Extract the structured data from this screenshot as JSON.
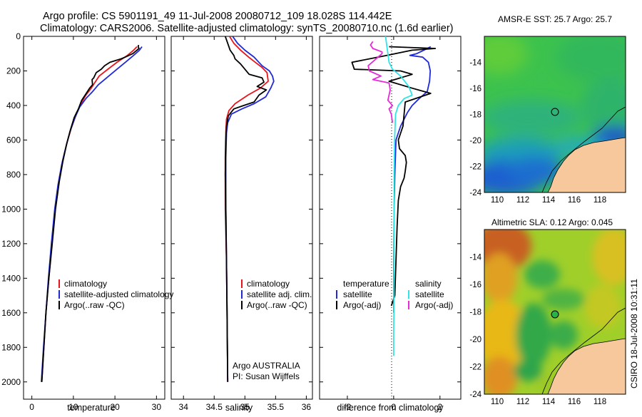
{
  "title": {
    "line1": "Argo profile: CS 5901191_49 11-Jul-2008 20080712_109 18.028S 114.442E",
    "line2": "Climatology: CARS2006. Satellite-adjusted climatology: synTS_20080710.nc (1.6d earlier)"
  },
  "credit": "CSIRO 18-Jul-2008 10:31:11",
  "chart_data": [
    {
      "id": "temperature",
      "type": "line",
      "xlabel": "temperature",
      "ylabel": "",
      "xlim": [
        -2,
        32
      ],
      "ylim": [
        0,
        2100
      ],
      "y_reversed": true,
      "xticks": [
        0,
        10,
        20,
        30
      ],
      "yticks": [
        0,
        200,
        400,
        600,
        800,
        1000,
        1200,
        1400,
        1600,
        1800,
        2000
      ],
      "legend": [
        "climatology",
        "satellite-adjusted climatology",
        "Argo(..raw -QC)"
      ],
      "series": [
        {
          "name": "climatology",
          "color": "#e8141b",
          "points": [
            [
              25.3,
              60
            ],
            [
              24.5,
              80
            ],
            [
              23,
              110
            ],
            [
              20.5,
              150
            ],
            [
              18.3,
              190
            ],
            [
              16.2,
              230
            ],
            [
              15.1,
              270
            ],
            [
              14.3,
              300
            ],
            [
              13,
              340
            ],
            [
              11.8,
              390
            ],
            [
              10.7,
              450
            ],
            [
              9.5,
              530
            ],
            [
              8.4,
              620
            ],
            [
              7.4,
              720
            ],
            [
              6.5,
              840
            ],
            [
              5.6,
              1000
            ],
            [
              4.8,
              1200
            ],
            [
              4.1,
              1400
            ],
            [
              3.4,
              1600
            ],
            [
              2.9,
              1800
            ],
            [
              2.4,
              2000
            ]
          ]
        },
        {
          "name": "satellite-adjusted climatology",
          "color": "#1f2ad6",
          "points": [
            [
              26.5,
              60
            ],
            [
              25.9,
              80
            ],
            [
              24.5,
              110
            ],
            [
              22.5,
              150
            ],
            [
              20.5,
              190
            ],
            [
              18,
              240
            ],
            [
              16,
              280
            ],
            [
              14.6,
              320
            ],
            [
              13,
              360
            ],
            [
              11.5,
              410
            ],
            [
              10.4,
              470
            ],
            [
              9.2,
              550
            ],
            [
              8.2,
              640
            ],
            [
              7.2,
              740
            ],
            [
              6.3,
              860
            ],
            [
              5.5,
              1000
            ],
            [
              4.7,
              1200
            ],
            [
              4,
              1400
            ],
            [
              3.4,
              1600
            ],
            [
              2.8,
              1800
            ],
            [
              2.3,
              2000
            ]
          ]
        },
        {
          "name": "Argo(..raw -QC)",
          "color": "#000000",
          "points": [
            [
              25.7,
              50
            ],
            [
              25.6,
              60
            ],
            [
              25.8,
              70
            ],
            [
              25.3,
              80
            ],
            [
              24.3,
              100
            ],
            [
              22.5,
              120
            ],
            [
              21.5,
              130
            ],
            [
              18.8,
              150
            ],
            [
              17.5,
              170
            ],
            [
              16.7,
              190
            ],
            [
              15.5,
              210
            ],
            [
              14.9,
              240
            ],
            [
              14.5,
              250
            ],
            [
              14.6,
              280
            ],
            [
              13.9,
              300
            ],
            [
              13.1,
              330
            ],
            [
              12,
              370
            ],
            [
              11.2,
              420
            ],
            [
              10.2,
              470
            ],
            [
              9.3,
              540
            ],
            [
              8.4,
              620
            ],
            [
              7.5,
              720
            ],
            [
              6.6,
              840
            ],
            [
              5.7,
              1000
            ],
            [
              4.9,
              1200
            ],
            [
              4.1,
              1400
            ],
            [
              3.4,
              1600
            ],
            [
              2.9,
              1800
            ],
            [
              2.4,
              2000
            ]
          ]
        }
      ]
    },
    {
      "id": "salinity",
      "type": "line",
      "xlabel": "salinity",
      "ylabel": "",
      "xlim": [
        33.8,
        36.1
      ],
      "ylim": [
        0,
        2100
      ],
      "y_reversed": true,
      "xticks": [
        34,
        34.5,
        35,
        35.5,
        36
      ],
      "legend": [
        "climatology",
        "satellite adj. clim.",
        "Argo(..raw -QC)"
      ],
      "annotation": [
        "Argo AUSTRALIA",
        "PI: Susan Wijffels"
      ],
      "series": [
        {
          "name": "climatology",
          "color": "#e8141b",
          "points": [
            [
              34.75,
              0
            ],
            [
              34.82,
              40
            ],
            [
              34.93,
              80
            ],
            [
              35.06,
              120
            ],
            [
              35.17,
              150
            ],
            [
              35.28,
              180
            ],
            [
              35.36,
              210
            ],
            [
              35.38,
              260
            ],
            [
              35.25,
              300
            ],
            [
              35.05,
              340
            ],
            [
              34.84,
              390
            ],
            [
              34.74,
              430
            ],
            [
              34.7,
              480
            ],
            [
              34.69,
              550
            ],
            [
              34.68,
              700
            ],
            [
              34.68,
              1000
            ],
            [
              34.7,
              1300
            ],
            [
              34.71,
              1600
            ],
            [
              34.72,
              2000
            ]
          ]
        },
        {
          "name": "satellite-adjusted climatology",
          "color": "#1f2ad6",
          "points": [
            [
              34.8,
              0
            ],
            [
              34.88,
              40
            ],
            [
              35.0,
              80
            ],
            [
              35.15,
              120
            ],
            [
              35.28,
              170
            ],
            [
              35.4,
              200
            ],
            [
              35.45,
              230
            ],
            [
              35.47,
              260
            ],
            [
              35.42,
              300
            ],
            [
              35.34,
              350
            ],
            [
              35.15,
              390
            ],
            [
              34.95,
              420
            ],
            [
              34.78,
              450
            ],
            [
              34.72,
              500
            ],
            [
              34.7,
              560
            ],
            [
              34.69,
              700
            ],
            [
              34.69,
              1000
            ],
            [
              34.7,
              1300
            ],
            [
              34.71,
              1600
            ],
            [
              34.72,
              2000
            ]
          ]
        },
        {
          "name": "Argo(..raw -QC)",
          "color": "#000000",
          "points": [
            [
              34.68,
              0
            ],
            [
              34.72,
              40
            ],
            [
              34.76,
              80
            ],
            [
              34.82,
              110
            ],
            [
              34.84,
              130
            ],
            [
              34.93,
              160
            ],
            [
              35.0,
              190
            ],
            [
              35.07,
              220
            ],
            [
              35.28,
              240
            ],
            [
              35.31,
              265
            ],
            [
              35.2,
              290
            ],
            [
              35.35,
              310
            ],
            [
              35.23,
              340
            ],
            [
              35.15,
              380
            ],
            [
              34.98,
              400
            ],
            [
              34.82,
              420
            ],
            [
              34.73,
              460
            ],
            [
              34.7,
              520
            ],
            [
              34.69,
              600
            ],
            [
              34.68,
              800
            ],
            [
              34.69,
              1000
            ],
            [
              34.7,
              1300
            ],
            [
              34.71,
              1600
            ],
            [
              34.72,
              2000
            ]
          ]
        }
      ]
    },
    {
      "id": "difference",
      "type": "line",
      "xlabel": "difference from climatology",
      "ylabel": "",
      "xlim": [
        -3.2,
        2.9
      ],
      "ylim": [
        0,
        2100
      ],
      "y_reversed": true,
      "xticks": [
        -2,
        0,
        2
      ],
      "legend": [
        "temperature",
        "satellite",
        "Argo(-adj)",
        "salinity",
        "satellite",
        "Argo(-adj)"
      ],
      "series": [
        {
          "name": "temperature satellite",
          "color": "#1f2ad6",
          "points": [
            [
              1.6,
              60
            ],
            [
              1.3,
              80
            ],
            [
              1.0,
              100
            ],
            [
              0.7,
              110
            ],
            [
              1.25,
              120
            ],
            [
              1.5,
              150
            ],
            [
              1.58,
              200
            ],
            [
              1.55,
              260
            ],
            [
              1.45,
              320
            ],
            [
              1.1,
              360
            ],
            [
              0.8,
              400
            ],
            [
              0.6,
              440
            ],
            [
              0.3,
              520
            ],
            [
              0.1,
              600
            ],
            [
              0.05,
              800
            ],
            [
              0.02,
              1000
            ],
            [
              0,
              1300
            ],
            [
              0,
              1600
            ]
          ]
        },
        {
          "name": "temperature Argo(-adj)",
          "color": "#000000",
          "points": [
            [
              -0.2,
              60
            ],
            [
              1.8,
              70
            ],
            [
              0.8,
              80
            ],
            [
              -0.3,
              110
            ],
            [
              -1.8,
              150
            ],
            [
              -1.7,
              190
            ],
            [
              0.3,
              200
            ],
            [
              0.8,
              220
            ],
            [
              -0.2,
              260
            ],
            [
              0.8,
              300
            ],
            [
              1.6,
              330
            ],
            [
              0.5,
              380
            ],
            [
              0.45,
              450
            ],
            [
              0.4,
              520
            ],
            [
              0.2,
              600
            ],
            [
              0.25,
              650
            ],
            [
              0.5,
              690
            ],
            [
              0.55,
              730
            ],
            [
              0.5,
              780
            ],
            [
              0.45,
              820
            ],
            [
              0.3,
              870
            ],
            [
              0.2,
              950
            ],
            [
              0.15,
              1100
            ],
            [
              0.1,
              1300
            ],
            [
              0.05,
              1500
            ],
            [
              -0.1,
              1560
            ]
          ]
        },
        {
          "name": "salinity satellite",
          "color": "#2ee6e6",
          "points": [
            [
              -0.35,
              0
            ],
            [
              -0.3,
              50
            ],
            [
              -0.25,
              100
            ],
            [
              -0.2,
              150
            ],
            [
              -0.05,
              190
            ],
            [
              0.3,
              230
            ],
            [
              0.65,
              290
            ],
            [
              0.8,
              340
            ],
            [
              0.45,
              360
            ],
            [
              0.2,
              400
            ],
            [
              0.08,
              450
            ],
            [
              0.04,
              600
            ],
            [
              0.02,
              800
            ],
            [
              0.02,
              1000
            ],
            [
              0.01,
              1300
            ],
            [
              0.01,
              1600
            ],
            [
              0,
              1700
            ],
            [
              0,
              1850
            ]
          ]
        },
        {
          "name": "salinity Argo(-adj)",
          "color": "#e52ad6",
          "points": [
            [
              -0.9,
              30
            ],
            [
              -1.0,
              50
            ],
            [
              -0.9,
              70
            ],
            [
              -0.5,
              90
            ],
            [
              -0.5,
              100
            ],
            [
              -1.1,
              170
            ],
            [
              -1.05,
              200
            ],
            [
              -0.55,
              230
            ],
            [
              -0.9,
              250
            ],
            [
              -0.2,
              270
            ],
            [
              -0.15,
              310
            ],
            [
              -0.25,
              370
            ],
            [
              -0.05,
              400
            ],
            [
              -0.2,
              420
            ],
            [
              -0.1,
              450
            ],
            [
              -0.05,
              500
            ]
          ]
        }
      ]
    },
    {
      "id": "sst-map",
      "type": "heatmap",
      "title": "AMSR-E SST: 25.7 Argo: 25.7",
      "xlim": [
        109,
        120
      ],
      "ylim": [
        -24,
        -12
      ],
      "xticks": [
        110,
        112,
        114,
        116,
        118
      ],
      "yticks": [
        -14,
        -16,
        -18,
        -20,
        -22,
        -24
      ],
      "argo_position": [
        114.442,
        -18.028
      ],
      "colors": {
        "water": "#39c24f",
        "cold": "#1234c8",
        "land": "#f6c89c",
        "marker_fill": "#33c45a"
      }
    },
    {
      "id": "sla-map",
      "type": "heatmap",
      "title": "Altimetric SLA: 0.12 Argo: 0.045",
      "xlim": [
        109,
        120
      ],
      "ylim": [
        -24,
        -12
      ],
      "xticks": [
        110,
        112,
        114,
        116,
        118
      ],
      "yticks": [
        -14,
        -16,
        -18,
        -20,
        -22,
        -24
      ],
      "argo_position": [
        114.442,
        -18.028
      ],
      "colors": {
        "high": "#9c3a10",
        "mid": "#e8c820",
        "low": "#2aa64a",
        "land": "#f6c89c",
        "marker_fill": "#2bb14b"
      }
    }
  ]
}
